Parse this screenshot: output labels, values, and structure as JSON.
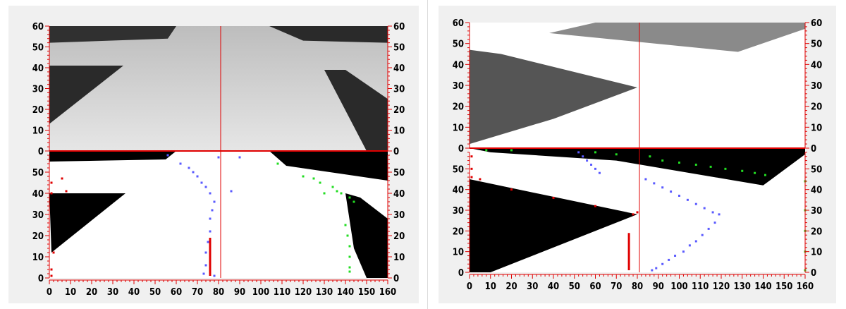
{
  "chart_data": [
    {
      "type": "scatter",
      "title": "",
      "xlabel": "",
      "ylabel": "",
      "xlim": [
        0,
        160
      ],
      "x_ticks": [
        0,
        10,
        20,
        30,
        40,
        50,
        60,
        70,
        80,
        90,
        100,
        110,
        120,
        130,
        140,
        150,
        160
      ],
      "upper_view": {
        "ylim": [
          0,
          60
        ],
        "y_ticks": [
          0,
          10,
          20,
          30,
          40,
          50,
          60
        ],
        "content": "grayscale camera frame"
      },
      "lower_view": {
        "ylim": [
          0,
          60
        ],
        "y_ticks": [
          0,
          10,
          20,
          30,
          40,
          50
        ],
        "content": "binarized frame"
      },
      "center_line_x": 81,
      "series": [
        {
          "color": "#5a5aff",
          "points": [
            [
              56,
              58
            ],
            [
              62,
              54
            ],
            [
              66,
              52
            ],
            [
              68,
              50
            ],
            [
              70,
              48
            ],
            [
              72,
              45
            ],
            [
              74,
              43
            ],
            [
              76,
              40
            ],
            [
              78,
              36
            ],
            [
              77,
              32
            ],
            [
              76,
              28
            ],
            [
              76,
              22
            ],
            [
              75,
              17
            ],
            [
              74,
              12
            ],
            [
              74,
              6
            ],
            [
              73,
              2
            ],
            [
              78,
              1
            ],
            [
              86,
              41
            ],
            [
              90,
              57
            ],
            [
              80,
              57
            ]
          ]
        },
        {
          "color": "#22dd22",
          "points": [
            [
              108,
              54
            ],
            [
              120,
              48
            ],
            [
              125,
              47
            ],
            [
              128,
              45
            ],
            [
              130,
              40
            ],
            [
              134,
              43
            ],
            [
              136,
              41
            ],
            [
              138,
              40
            ],
            [
              142,
              38
            ],
            [
              144,
              36
            ],
            [
              140,
              25
            ],
            [
              141,
              20
            ],
            [
              142,
              15
            ],
            [
              142,
              10
            ],
            [
              142,
              5
            ],
            [
              142,
              3
            ]
          ]
        },
        {
          "color": "#e00000",
          "points": [
            [
              1,
              45
            ],
            [
              1,
              40
            ],
            [
              2,
              12
            ],
            [
              1,
              4
            ],
            [
              1,
              1
            ],
            [
              6,
              47
            ],
            [
              8,
              41
            ]
          ]
        }
      ],
      "markers": [
        {
          "x": 76,
          "y_from": 1,
          "y_to": 19,
          "color": "#e00000"
        }
      ]
    },
    {
      "type": "scatter",
      "title": "",
      "xlabel": "",
      "ylabel": "",
      "xlim": [
        0,
        160
      ],
      "x_ticks": [
        0,
        10,
        20,
        30,
        40,
        50,
        60,
        70,
        80,
        90,
        100,
        110,
        120,
        130,
        140,
        150,
        160
      ],
      "upper_view": {
        "ylim": [
          0,
          60
        ],
        "y_ticks": [
          0,
          10,
          20,
          30,
          40,
          50,
          60
        ],
        "content": "grayscale camera frame"
      },
      "lower_view": {
        "ylim": [
          0,
          60
        ],
        "y_ticks": [
          0,
          10,
          20,
          30,
          40,
          50
        ],
        "content": "binarized frame"
      },
      "center_line_x": 81,
      "series": [
        {
          "color": "#5a5aff",
          "points": [
            [
              52,
              58
            ],
            [
              54,
              56
            ],
            [
              56,
              54
            ],
            [
              58,
              52
            ],
            [
              60,
              50
            ],
            [
              62,
              48
            ],
            [
              84,
              45
            ],
            [
              88,
              43
            ],
            [
              92,
              41
            ],
            [
              96,
              39
            ],
            [
              100,
              37
            ],
            [
              104,
              35
            ],
            [
              108,
              33
            ],
            [
              112,
              31
            ],
            [
              116,
              29
            ],
            [
              119,
              28
            ],
            [
              117,
              24
            ],
            [
              114,
              21
            ],
            [
              111,
              18
            ],
            [
              108,
              15
            ],
            [
              105,
              13
            ],
            [
              102,
              10
            ],
            [
              98,
              8
            ],
            [
              95,
              6
            ],
            [
              92,
              4
            ],
            [
              89,
              2
            ],
            [
              87,
              1
            ]
          ]
        },
        {
          "color": "#22dd22",
          "points": [
            [
              8,
              59
            ],
            [
              20,
              59
            ],
            [
              60,
              58
            ],
            [
              70,
              57
            ],
            [
              86,
              56
            ],
            [
              92,
              54
            ],
            [
              100,
              53
            ],
            [
              108,
              52
            ],
            [
              115,
              51
            ],
            [
              122,
              50
            ],
            [
              130,
              49
            ],
            [
              136,
              48
            ],
            [
              141,
              47
            ],
            [
              160,
              44
            ],
            [
              160,
              30
            ],
            [
              160,
              20
            ],
            [
              160,
              10
            ],
            [
              160,
              1
            ]
          ]
        },
        {
          "color": "#e00000",
          "points": [
            [
              1,
              56
            ],
            [
              1,
              50
            ],
            [
              1,
              46
            ],
            [
              5,
              45
            ],
            [
              20,
              40
            ],
            [
              40,
              36
            ],
            [
              60,
              32
            ],
            [
              78,
              28
            ],
            [
              80,
              29
            ]
          ]
        }
      ],
      "markers": [
        {
          "x": 76,
          "y_from": 1,
          "y_to": 19,
          "color": "#e00000"
        }
      ]
    }
  ]
}
